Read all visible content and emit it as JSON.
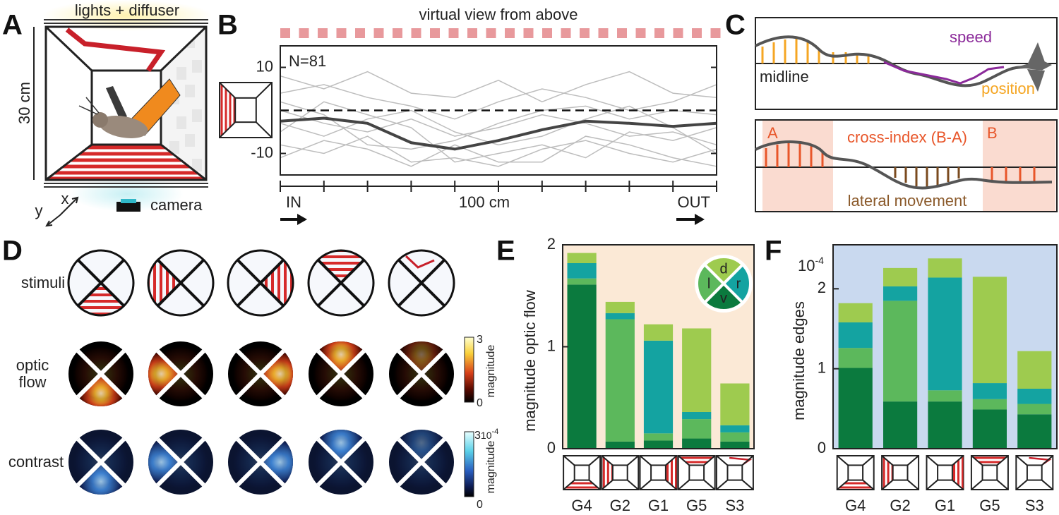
{
  "figure": {
    "panel_labels": [
      "A",
      "B",
      "C",
      "D",
      "E",
      "F"
    ],
    "panel_a": {
      "lights": "lights + diffuser",
      "height": "30 cm",
      "axis_x": "x",
      "axis_y": "y",
      "camera": "camera"
    },
    "panel_c": {
      "speed": "speed",
      "midline": "midline",
      "position": "position",
      "region_a": "A",
      "cross_index": "cross-index (B-A)",
      "region_b": "B",
      "lateral": "lateral movement"
    },
    "panel_d": {
      "row_labels": [
        "stimuli",
        "optic flow",
        "contrast"
      ],
      "flow_colorbar": {
        "ticks": [
          0,
          3
        ],
        "label": "magnitude"
      },
      "contrast_colorbar": {
        "ticks": [
          0,
          3
        ],
        "scale": {
          "base": "10",
          "exponent": "-4"
        },
        "label": "magnitude"
      }
    }
  },
  "chart_data": [
    {
      "type": "line",
      "title": "virtual view from above",
      "annotation": "N=81",
      "x_start": "IN",
      "x_label": "100 cm",
      "x_end": "OUT",
      "ylim": [
        -15,
        15
      ],
      "yticks": [
        -10,
        10
      ],
      "reference_line": 0,
      "traces": {
        "color": "#bdbdbd",
        "values": [
          [
            4,
            6,
            3,
            1,
            -2,
            2,
            5,
            3,
            0,
            2,
            6
          ],
          [
            -8,
            -10,
            -6,
            -12,
            -11,
            -13,
            -9,
            -7,
            -10,
            -12,
            -9
          ],
          [
            0,
            -3,
            -5,
            -2,
            -6,
            -4,
            -1,
            -3,
            -6,
            -5,
            -8
          ],
          [
            -5,
            2,
            -1,
            -4,
            -12,
            -10,
            -8,
            -11,
            -5,
            -7,
            -4
          ],
          [
            8,
            5,
            9,
            4,
            3,
            7,
            2,
            6,
            9,
            4,
            3
          ],
          [
            -11,
            -7,
            -9,
            -13,
            -8,
            -12,
            -12,
            -6,
            -8,
            -11,
            -13
          ],
          [
            2,
            -1,
            -8,
            -9,
            -7,
            -3,
            0,
            1,
            -2,
            0,
            -1
          ],
          [
            -3,
            -6,
            -2,
            0,
            -5,
            -8,
            -6,
            -2,
            1,
            -4,
            -10
          ]
        ]
      },
      "series": [
        {
          "color": "#444444",
          "values": [
            -2.5,
            -1.8,
            -3,
            -7.5,
            -9,
            -7,
            -4.5,
            -2.5,
            -3,
            -3.7,
            -3
          ]
        }
      ]
    },
    {
      "type": "bar",
      "stacked": true,
      "ylabel": "magnitude optic flow",
      "categories": [
        "G4",
        "G2",
        "G1",
        "G5",
        "S3"
      ],
      "ylim": [
        0,
        2
      ],
      "yticks": [
        0,
        1,
        2
      ],
      "background": "#fbe9d6",
      "series": [
        {
          "name": "v",
          "color": "#0b7a3e",
          "values": [
            1.61,
            0.07,
            0.08,
            0.1,
            0.07
          ]
        },
        {
          "name": "l",
          "color": "#5cb85c",
          "values": [
            0.06,
            1.2,
            0.07,
            0.19,
            0.09
          ]
        },
        {
          "name": "r",
          "color": "#14a3a1",
          "values": [
            0.15,
            0.06,
            0.91,
            0.07,
            0.07
          ]
        },
        {
          "name": "d",
          "color": "#9ecb4f",
          "values": [
            0.1,
            0.11,
            0.16,
            0.82,
            0.41
          ]
        }
      ]
    },
    {
      "type": "bar",
      "stacked": true,
      "ylabel": "magnitude edges",
      "scale": {
        "base": "10",
        "exponent": "-4"
      },
      "categories": [
        "G4",
        "G2",
        "G1",
        "G5",
        "S3"
      ],
      "ylim": [
        0,
        2.55
      ],
      "yticks": [
        0,
        1,
        2
      ],
      "background": "#c9d9ef",
      "series": [
        {
          "color": "#0b7a3e",
          "values": [
            1.01,
            0.59,
            0.59,
            0.49,
            0.43
          ]
        },
        {
          "color": "#5cb85c",
          "values": [
            0.25,
            1.26,
            0.14,
            0.13,
            0.13
          ]
        },
        {
          "color": "#14a3a1",
          "values": [
            0.32,
            0.18,
            1.41,
            0.2,
            0.19
          ]
        },
        {
          "color": "#9ecb4f",
          "values": [
            0.24,
            0.23,
            0.24,
            1.33,
            0.47
          ]
        }
      ]
    }
  ]
}
